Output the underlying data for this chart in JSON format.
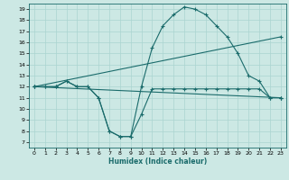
{
  "title": "",
  "xlabel": "Humidex (Indice chaleur)",
  "bg_color": "#cce8e4",
  "line_color": "#1a6b6b",
  "grid_color": "#aad4d0",
  "xlim": [
    -0.5,
    23.5
  ],
  "ylim": [
    6.5,
    19.5
  ],
  "xticks": [
    0,
    1,
    2,
    3,
    4,
    5,
    6,
    7,
    8,
    9,
    10,
    11,
    12,
    13,
    14,
    15,
    16,
    17,
    18,
    19,
    20,
    21,
    22,
    23
  ],
  "yticks": [
    7,
    8,
    9,
    10,
    11,
    12,
    13,
    14,
    15,
    16,
    17,
    18,
    19
  ],
  "lines": [
    {
      "x": [
        0,
        1,
        2,
        3,
        4,
        5,
        6,
        7,
        8,
        9,
        10,
        11,
        12,
        13,
        14,
        15,
        16,
        17,
        18,
        19,
        20,
        21,
        22,
        23
      ],
      "y": [
        12,
        12,
        12,
        12.5,
        12,
        12,
        11,
        8,
        7.5,
        7.5,
        9.5,
        11.8,
        11.8,
        11.8,
        11.8,
        11.8,
        11.8,
        11.8,
        11.8,
        11.8,
        11.8,
        11.8,
        11,
        11
      ]
    },
    {
      "x": [
        0,
        1,
        2,
        3,
        4,
        5,
        6,
        7,
        8,
        9,
        10,
        11,
        12,
        13,
        14,
        15,
        16,
        17,
        18,
        19,
        20,
        21,
        22,
        23
      ],
      "y": [
        12,
        12,
        12,
        12.5,
        12,
        12,
        11,
        8,
        7.5,
        7.5,
        12,
        15.5,
        17.5,
        18.5,
        19.2,
        19,
        18.5,
        17.5,
        16.5,
        15,
        13,
        12.5,
        11,
        11
      ]
    },
    {
      "x": [
        0,
        23
      ],
      "y": [
        12,
        16.5
      ]
    },
    {
      "x": [
        0,
        23
      ],
      "y": [
        12,
        11
      ]
    }
  ]
}
